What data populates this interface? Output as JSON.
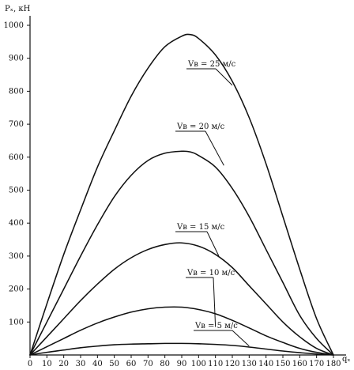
{
  "chart_data": {
    "type": "line",
    "xlabel": "qₓ",
    "ylabel": "Pₓ, кН",
    "xlim": [
      0,
      180
    ],
    "ylim": [
      0,
      1000
    ],
    "x_ticks": [
      0,
      10,
      20,
      30,
      40,
      50,
      60,
      70,
      80,
      90,
      100,
      110,
      120,
      130,
      140,
      150,
      160,
      170,
      180
    ],
    "y_ticks": [
      100,
      200,
      300,
      400,
      500,
      600,
      700,
      800,
      900,
      1000
    ],
    "grid": false,
    "series": [
      {
        "name": "Vв = 25 м/с",
        "x": [
          0,
          10,
          20,
          30,
          40,
          50,
          60,
          70,
          80,
          90,
          95,
          100,
          110,
          120,
          130,
          140,
          150,
          160,
          170,
          180
        ],
        "y": [
          0,
          155,
          305,
          440,
          570,
          680,
          785,
          870,
          935,
          967,
          972,
          960,
          910,
          830,
          720,
          580,
          420,
          260,
          110,
          0
        ],
        "label_at": [
          120,
          818
        ]
      },
      {
        "name": "Vв = 20 м/с",
        "x": [
          0,
          10,
          20,
          30,
          40,
          50,
          60,
          70,
          80,
          90,
          95,
          100,
          110,
          120,
          130,
          140,
          150,
          160,
          170,
          180
        ],
        "y": [
          0,
          100,
          200,
          300,
          395,
          480,
          545,
          590,
          612,
          618,
          616,
          605,
          570,
          505,
          420,
          320,
          220,
          120,
          50,
          0
        ],
        "label_at": [
          115,
          575
        ]
      },
      {
        "name": "Vв = 15 м/с",
        "x": [
          0,
          10,
          20,
          30,
          40,
          50,
          60,
          70,
          80,
          90,
          100,
          110,
          120,
          130,
          140,
          150,
          160,
          170,
          180
        ],
        "y": [
          0,
          55,
          110,
          165,
          215,
          260,
          295,
          320,
          335,
          340,
          330,
          305,
          265,
          210,
          155,
          100,
          55,
          20,
          0
        ],
        "label_at": [
          112,
          300
        ]
      },
      {
        "name": "Vв = 10 м/с",
        "x": [
          0,
          10,
          20,
          30,
          40,
          50,
          60,
          70,
          80,
          90,
          100,
          110,
          120,
          130,
          140,
          150,
          160,
          170,
          180
        ],
        "y": [
          0,
          25,
          50,
          75,
          97,
          115,
          130,
          140,
          145,
          145,
          138,
          125,
          105,
          82,
          58,
          38,
          20,
          8,
          0
        ],
        "label_at": [
          110,
          85
        ]
      },
      {
        "name": "Vв = 5 м/с",
        "x": [
          0,
          10,
          20,
          30,
          40,
          50,
          60,
          70,
          80,
          90,
          100,
          110,
          120,
          130,
          140,
          150,
          160,
          170,
          180
        ],
        "y": [
          0,
          8,
          15,
          22,
          27,
          31,
          33,
          34,
          35,
          35,
          34,
          32,
          29,
          24,
          18,
          12,
          7,
          3,
          0
        ],
        "label_at": [
          130,
          27
        ]
      }
    ]
  }
}
